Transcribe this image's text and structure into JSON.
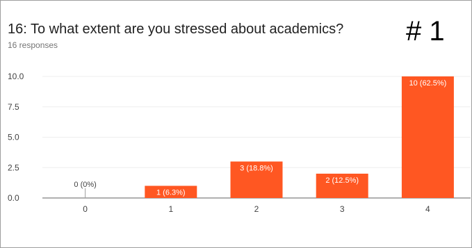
{
  "header": {
    "title": "16: To what extent are you stressed about academics?",
    "responses": "16 responses",
    "tag": "# 1"
  },
  "chart_data": {
    "type": "bar",
    "categories": [
      "0",
      "1",
      "2",
      "3",
      "4"
    ],
    "values": [
      0,
      1,
      3,
      2,
      10
    ],
    "data_labels": [
      "0 (0%)",
      "1 (6.3%)",
      "3 (18.8%)",
      "2 (12.5%)",
      "10 (62.5%)"
    ],
    "yticks": [
      "0.0",
      "2.5",
      "5.0",
      "7.5",
      "10.0"
    ],
    "ylim": [
      0,
      10
    ],
    "grid": true,
    "bar_color": "#ff5722"
  }
}
